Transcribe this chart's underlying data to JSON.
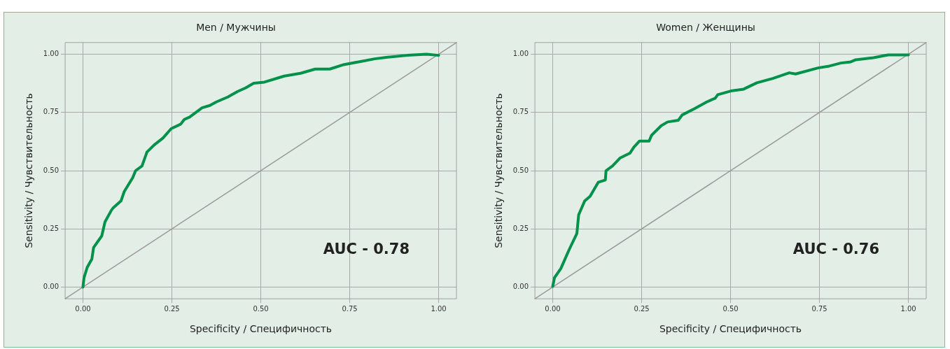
{
  "chart_data": [
    {
      "type": "line",
      "title": "Men / Мужчины",
      "xlabel": "Specificity / Специфичность",
      "ylabel": "Sensitivity / Чувствительность",
      "xlim": [
        -0.05,
        1.05
      ],
      "ylim": [
        -0.05,
        1.05
      ],
      "xticks": [
        {
          "value": 0,
          "label": "0.00"
        },
        {
          "value": 0.25,
          "label": "0.25"
        },
        {
          "value": 0.5,
          "label": "0.50"
        },
        {
          "value": 0.75,
          "label": "0.75"
        },
        {
          "value": 1,
          "label": "1.00"
        }
      ],
      "yticks": [
        {
          "value": 0,
          "label": "0.00"
        },
        {
          "value": 0.25,
          "label": "0.25"
        },
        {
          "value": 0.5,
          "label": "0.50"
        },
        {
          "value": 0.75,
          "label": "0.75"
        },
        {
          "value": 1,
          "label": "1.00"
        }
      ],
      "grid": true,
      "marker": "none",
      "annotations": [
        "AUC - 0.78"
      ],
      "series": [
        {
          "color": "#00914a",
          "x": [
            0,
            0.003,
            0.012,
            0.025,
            0.03,
            0.053,
            0.062,
            0.08,
            0.085,
            0.107,
            0.116,
            0.14,
            0.148,
            0.166,
            0.18,
            0.2,
            0.225,
            0.248,
            0.275,
            0.285,
            0.3,
            0.335,
            0.357,
            0.375,
            0.407,
            0.435,
            0.457,
            0.48,
            0.51,
            0.566,
            0.612,
            0.653,
            0.694,
            0.73,
            0.775,
            0.82,
            0.857,
            0.912,
            0.966,
            1
          ],
          "values": [
            0,
            0.04,
            0.085,
            0.12,
            0.17,
            0.22,
            0.28,
            0.33,
            0.34,
            0.37,
            0.41,
            0.47,
            0.5,
            0.52,
            0.58,
            0.61,
            0.64,
            0.68,
            0.7,
            0.72,
            0.73,
            0.77,
            0.78,
            0.795,
            0.816,
            0.84,
            0.855,
            0.875,
            0.88,
            0.906,
            0.918,
            0.936,
            0.936,
            0.954,
            0.967,
            0.98,
            0.987,
            0.995,
            1,
            0.995
          ]
        },
        {
          "color": "#9a9a9a",
          "x": [
            -0.05,
            1.05
          ],
          "values": [
            -0.05,
            1.05
          ]
        }
      ]
    },
    {
      "type": "line",
      "title": "Women / Женщины",
      "xlabel": "Specificity / Специфичность",
      "ylabel": "Sensitivity / Чувствительность",
      "xlim": [
        -0.05,
        1.05
      ],
      "ylim": [
        -0.05,
        1.05
      ],
      "xticks": [
        {
          "value": 0,
          "label": "0.00"
        },
        {
          "value": 0.25,
          "label": "0.25"
        },
        {
          "value": 0.5,
          "label": "0.50"
        },
        {
          "value": 0.75,
          "label": "0.75"
        },
        {
          "value": 1,
          "label": "1.00"
        }
      ],
      "yticks": [
        {
          "value": 0,
          "label": "0.00"
        },
        {
          "value": 0.25,
          "label": "0.25"
        },
        {
          "value": 0.5,
          "label": "0.50"
        },
        {
          "value": 0.75,
          "label": "0.75"
        },
        {
          "value": 1,
          "label": "1.00"
        }
      ],
      "grid": true,
      "marker": "none",
      "annotations": [
        "AUC - 0.76"
      ],
      "series": [
        {
          "color": "#00914a",
          "x": [
            0,
            0.005,
            0.023,
            0.046,
            0.068,
            0.073,
            0.09,
            0.105,
            0.128,
            0.148,
            0.15,
            0.168,
            0.19,
            0.217,
            0.228,
            0.244,
            0.271,
            0.278,
            0.305,
            0.323,
            0.353,
            0.364,
            0.4,
            0.433,
            0.457,
            0.464,
            0.501,
            0.537,
            0.574,
            0.619,
            0.665,
            0.683,
            0.746,
            0.778,
            0.81,
            0.838,
            0.852,
            0.902,
            0.943,
            1
          ],
          "values": [
            0.003,
            0.04,
            0.08,
            0.16,
            0.23,
            0.31,
            0.37,
            0.39,
            0.45,
            0.46,
            0.5,
            0.52,
            0.555,
            0.575,
            0.6,
            0.627,
            0.627,
            0.652,
            0.693,
            0.709,
            0.716,
            0.739,
            0.767,
            0.795,
            0.811,
            0.826,
            0.842,
            0.85,
            0.877,
            0.896,
            0.92,
            0.915,
            0.941,
            0.949,
            0.962,
            0.967,
            0.976,
            0.985,
            0.997,
            0.997
          ]
        },
        {
          "color": "#9a9a9a",
          "x": [
            -0.05,
            1.05
          ],
          "values": [
            -0.05,
            1.05
          ]
        }
      ]
    }
  ]
}
